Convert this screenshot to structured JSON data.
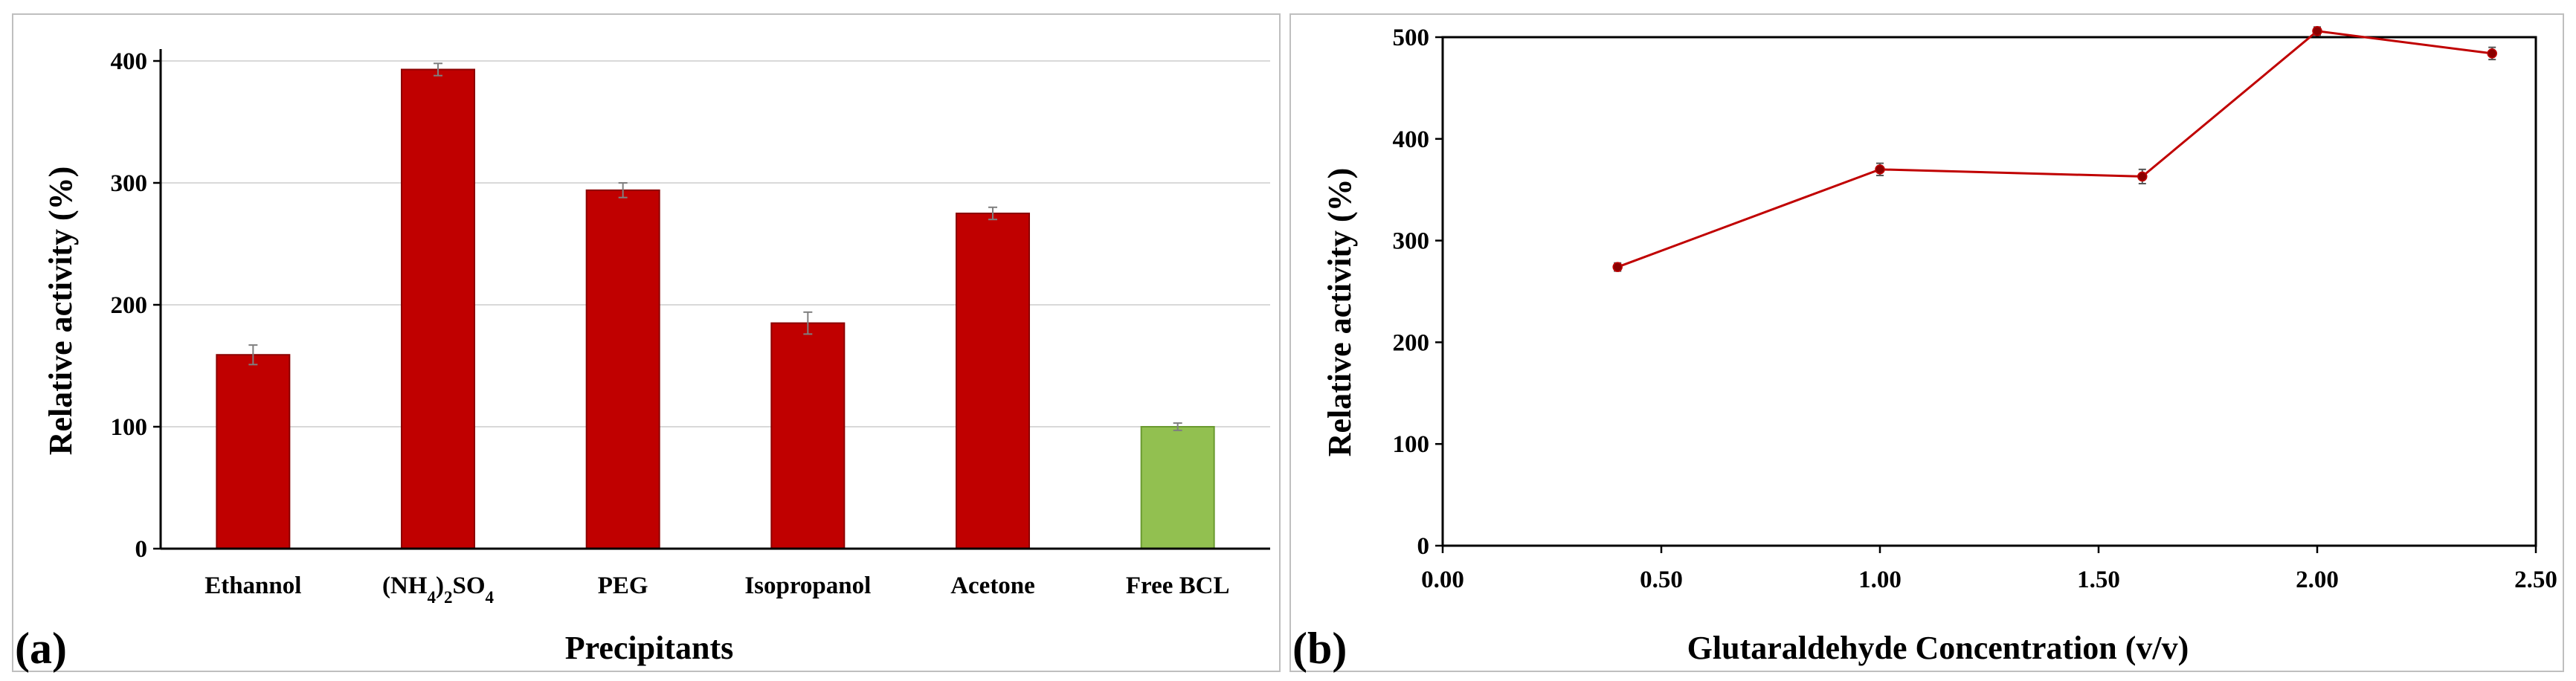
{
  "chart_data": [
    {
      "panel_label": "(a)",
      "type": "bar",
      "categories": [
        "Ethannol",
        "(NH4)2SO4",
        "PEG",
        "Isopropanol",
        "Acetone",
        "Free BCL"
      ],
      "values": [
        159,
        393,
        294,
        185,
        275,
        100
      ],
      "errors": [
        8,
        5,
        6,
        9,
        5,
        3
      ],
      "bar_colors": [
        "#c00000",
        "#c00000",
        "#c00000",
        "#c00000",
        "#c00000",
        "#92c050"
      ],
      "xlabel": "Precipitants",
      "ylabel": "Relative activity (%)",
      "ylim": [
        0,
        400
      ],
      "yticks": [
        "0",
        "100",
        "200",
        "300",
        "400"
      ],
      "grid": true
    },
    {
      "panel_label": "(b)",
      "type": "line",
      "x": [
        0.4,
        1.0,
        1.6,
        2.0,
        2.4
      ],
      "values": [
        274,
        370,
        363,
        506,
        484
      ],
      "errors": [
        4,
        6,
        7,
        4,
        6
      ],
      "line_color": "#c00000",
      "xlabel": "Glutaraldehyde Concentration (v/v)",
      "ylabel": "Relative activity (%)",
      "xlim": [
        0,
        2.5
      ],
      "ylim": [
        0,
        500
      ],
      "xticks": [
        "0.00",
        "0.50",
        "1.00",
        "1.50",
        "2.00",
        "2.50"
      ],
      "yticks": [
        "0",
        "100",
        "200",
        "300",
        "400",
        "500"
      ],
      "grid": false
    }
  ]
}
